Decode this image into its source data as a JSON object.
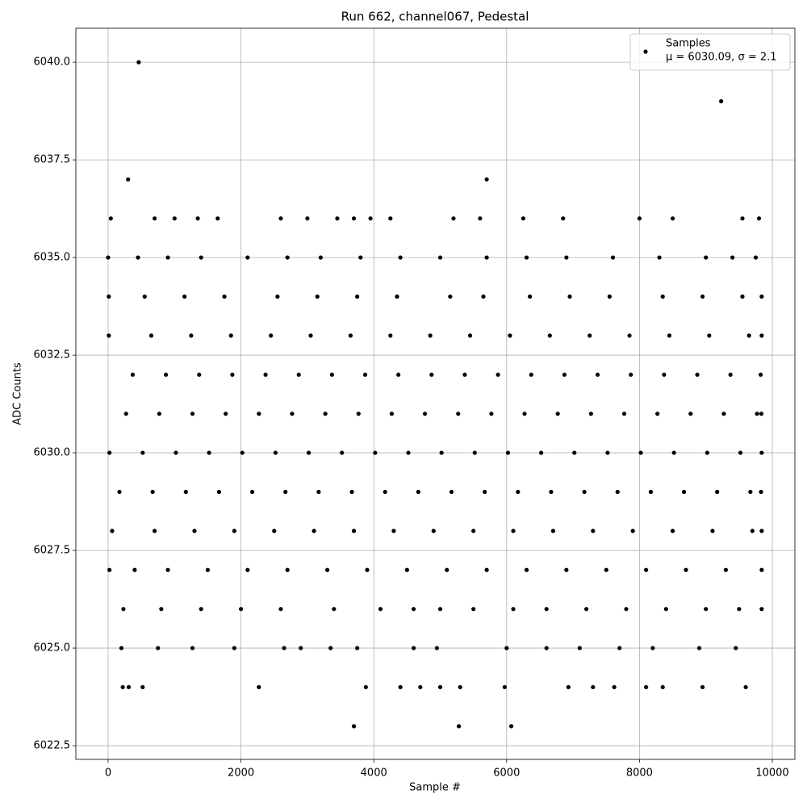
{
  "chart_data": {
    "type": "scatter",
    "title": "Run 662, channel067, Pedestal",
    "x_label": "Sample #",
    "y_label": "ADC Counts",
    "xlim": [
      -486,
      10340
    ],
    "ylim": [
      6022.15,
      6040.87
    ],
    "xticks": [
      0,
      2000,
      4000,
      6000,
      8000,
      10000
    ],
    "yticks": [
      6022.5,
      {
        "value": 6025,
        "label": "6025.0"
      },
      6027.5,
      {
        "value": 6030,
        "label": "6030.0"
      },
      6032.5,
      {
        "value": 6035,
        "label": "6035.0"
      },
      6037.5,
      {
        "value": 6040,
        "label": "6040.0"
      }
    ],
    "grid": true,
    "legend_position": "upper right",
    "series": [
      {
        "name": "Samples",
        "label": "μ = 6030.09, σ = 2.1",
        "color": "#000000",
        "points": [
          [
            20,
            6030
          ],
          [
            520,
            6030
          ],
          [
            1020,
            6030
          ],
          [
            1520,
            6030
          ],
          [
            2020,
            6030
          ],
          [
            2520,
            6030
          ],
          [
            3020,
            6030
          ],
          [
            3520,
            6030
          ],
          [
            4020,
            6030
          ],
          [
            4520,
            6030
          ],
          [
            5020,
            6030
          ],
          [
            5520,
            6030
          ],
          [
            6020,
            6030
          ],
          [
            6520,
            6030
          ],
          [
            7020,
            6030
          ],
          [
            7520,
            6030
          ],
          [
            8020,
            6030
          ],
          [
            8520,
            6030
          ],
          [
            9020,
            6030
          ],
          [
            9520,
            6030
          ],
          [
            9840,
            6030
          ],
          [
            170,
            6029
          ],
          [
            670,
            6029
          ],
          [
            1170,
            6029
          ],
          [
            1670,
            6029
          ],
          [
            2170,
            6029
          ],
          [
            2670,
            6029
          ],
          [
            3170,
            6029
          ],
          [
            3670,
            6029
          ],
          [
            4170,
            6029
          ],
          [
            4670,
            6029
          ],
          [
            5170,
            6029
          ],
          [
            5670,
            6029
          ],
          [
            6170,
            6029
          ],
          [
            6670,
            6029
          ],
          [
            7170,
            6029
          ],
          [
            7670,
            6029
          ],
          [
            8170,
            6029
          ],
          [
            8670,
            6029
          ],
          [
            9170,
            6029
          ],
          [
            9670,
            6029
          ],
          [
            9830,
            6029
          ],
          [
            270,
            6031
          ],
          [
            770,
            6031
          ],
          [
            1270,
            6031
          ],
          [
            1770,
            6031
          ],
          [
            2270,
            6031
          ],
          [
            2770,
            6031
          ],
          [
            3270,
            6031
          ],
          [
            3770,
            6031
          ],
          [
            4270,
            6031
          ],
          [
            4770,
            6031
          ],
          [
            5270,
            6031
          ],
          [
            5770,
            6031
          ],
          [
            6270,
            6031
          ],
          [
            6770,
            6031
          ],
          [
            7270,
            6031
          ],
          [
            7770,
            6031
          ],
          [
            8270,
            6031
          ],
          [
            8770,
            6031
          ],
          [
            9270,
            6031
          ],
          [
            9770,
            6031
          ],
          [
            9835,
            6031
          ],
          [
            370,
            6032
          ],
          [
            870,
            6032
          ],
          [
            1370,
            6032
          ],
          [
            1870,
            6032
          ],
          [
            2370,
            6032
          ],
          [
            2870,
            6032
          ],
          [
            3370,
            6032
          ],
          [
            3870,
            6032
          ],
          [
            4370,
            6032
          ],
          [
            4870,
            6032
          ],
          [
            5370,
            6032
          ],
          [
            5870,
            6032
          ],
          [
            6370,
            6032
          ],
          [
            6870,
            6032
          ],
          [
            7370,
            6032
          ],
          [
            7870,
            6032
          ],
          [
            8370,
            6032
          ],
          [
            8870,
            6032
          ],
          [
            9370,
            6032
          ],
          [
            9825,
            6032
          ],
          [
            60,
            6028
          ],
          [
            700,
            6028
          ],
          [
            1300,
            6028
          ],
          [
            1900,
            6028
          ],
          [
            2500,
            6028
          ],
          [
            3100,
            6028
          ],
          [
            3700,
            6028
          ],
          [
            4300,
            6028
          ],
          [
            4900,
            6028
          ],
          [
            5500,
            6028
          ],
          [
            6100,
            6028
          ],
          [
            6700,
            6028
          ],
          [
            7300,
            6028
          ],
          [
            7900,
            6028
          ],
          [
            8500,
            6028
          ],
          [
            9100,
            6028
          ],
          [
            9700,
            6028
          ],
          [
            9840,
            6028
          ],
          [
            10,
            6033
          ],
          [
            650,
            6033
          ],
          [
            1250,
            6033
          ],
          [
            1850,
            6033
          ],
          [
            2450,
            6033
          ],
          [
            3050,
            6033
          ],
          [
            3650,
            6033
          ],
          [
            4250,
            6033
          ],
          [
            4850,
            6033
          ],
          [
            5450,
            6033
          ],
          [
            6050,
            6033
          ],
          [
            6650,
            6033
          ],
          [
            7250,
            6033
          ],
          [
            7850,
            6033
          ],
          [
            8450,
            6033
          ],
          [
            9050,
            6033
          ],
          [
            9650,
            6033
          ],
          [
            9840,
            6033
          ],
          [
            20,
            6027
          ],
          [
            400,
            6027
          ],
          [
            900,
            6027
          ],
          [
            1500,
            6027
          ],
          [
            2100,
            6027
          ],
          [
            2700,
            6027
          ],
          [
            3300,
            6027
          ],
          [
            3900,
            6027
          ],
          [
            4500,
            6027
          ],
          [
            5100,
            6027
          ],
          [
            5700,
            6027
          ],
          [
            6300,
            6027
          ],
          [
            6900,
            6027
          ],
          [
            7500,
            6027
          ],
          [
            8100,
            6027
          ],
          [
            8700,
            6027
          ],
          [
            9300,
            6027
          ],
          [
            9840,
            6027
          ],
          [
            10,
            6034
          ],
          [
            550,
            6034
          ],
          [
            1150,
            6034
          ],
          [
            1750,
            6034
          ],
          [
            2550,
            6034
          ],
          [
            3150,
            6034
          ],
          [
            3750,
            6034
          ],
          [
            4350,
            6034
          ],
          [
            5150,
            6034
          ],
          [
            5650,
            6034
          ],
          [
            6350,
            6034
          ],
          [
            6950,
            6034
          ],
          [
            7550,
            6034
          ],
          [
            8350,
            6034
          ],
          [
            8950,
            6034
          ],
          [
            9550,
            6034
          ],
          [
            9840,
            6034
          ],
          [
            230,
            6026
          ],
          [
            800,
            6026
          ],
          [
            1400,
            6026
          ],
          [
            2000,
            6026
          ],
          [
            2600,
            6026
          ],
          [
            3400,
            6026
          ],
          [
            4100,
            6026
          ],
          [
            4600,
            6026
          ],
          [
            5000,
            6026
          ],
          [
            5500,
            6026
          ],
          [
            6100,
            6026
          ],
          [
            6600,
            6026
          ],
          [
            7200,
            6026
          ],
          [
            7800,
            6026
          ],
          [
            8400,
            6026
          ],
          [
            9000,
            6026
          ],
          [
            9500,
            6026
          ],
          [
            9840,
            6026
          ],
          [
            0,
            6035
          ],
          [
            450,
            6035
          ],
          [
            900,
            6035
          ],
          [
            1400,
            6035
          ],
          [
            2100,
            6035
          ],
          [
            2700,
            6035
          ],
          [
            3200,
            6035
          ],
          [
            3800,
            6035
          ],
          [
            4400,
            6035
          ],
          [
            5000,
            6035
          ],
          [
            5700,
            6035
          ],
          [
            6300,
            6035
          ],
          [
            6900,
            6035
          ],
          [
            7600,
            6035
          ],
          [
            8300,
            6035
          ],
          [
            9000,
            6035
          ],
          [
            9400,
            6035
          ],
          [
            9750,
            6035
          ],
          [
            200,
            6025
          ],
          [
            750,
            6025
          ],
          [
            1270,
            6025
          ],
          [
            1900,
            6025
          ],
          [
            2650,
            6025
          ],
          [
            2900,
            6025
          ],
          [
            3350,
            6025
          ],
          [
            3750,
            6025
          ],
          [
            4600,
            6025
          ],
          [
            4950,
            6025
          ],
          [
            6000,
            6025
          ],
          [
            6600,
            6025
          ],
          [
            7100,
            6025
          ],
          [
            7700,
            6025
          ],
          [
            8200,
            6025
          ],
          [
            8900,
            6025
          ],
          [
            9450,
            6025
          ],
          [
            220,
            6024
          ],
          [
            310,
            6024
          ],
          [
            520,
            6024
          ],
          [
            2270,
            6024
          ],
          [
            3880,
            6024
          ],
          [
            4400,
            6024
          ],
          [
            4700,
            6024
          ],
          [
            5000,
            6024
          ],
          [
            5300,
            6024
          ],
          [
            5970,
            6024
          ],
          [
            6930,
            6024
          ],
          [
            7300,
            6024
          ],
          [
            7620,
            6024
          ],
          [
            8100,
            6024
          ],
          [
            8350,
            6024
          ],
          [
            8950,
            6024
          ],
          [
            9600,
            6024
          ],
          [
            40,
            6036
          ],
          [
            700,
            6036
          ],
          [
            1000,
            6036
          ],
          [
            1350,
            6036
          ],
          [
            1650,
            6036
          ],
          [
            2600,
            6036
          ],
          [
            3000,
            6036
          ],
          [
            3450,
            6036
          ],
          [
            3700,
            6036
          ],
          [
            3950,
            6036
          ],
          [
            4250,
            6036
          ],
          [
            5200,
            6036
          ],
          [
            5600,
            6036
          ],
          [
            6250,
            6036
          ],
          [
            6850,
            6036
          ],
          [
            8000,
            6036
          ],
          [
            8500,
            6036
          ],
          [
            9550,
            6036
          ],
          [
            9800,
            6036
          ],
          [
            460,
            6040
          ],
          [
            9230,
            6039
          ],
          [
            300,
            6037
          ],
          [
            5700,
            6037
          ],
          [
            3700,
            6023
          ],
          [
            5280,
            6023
          ],
          [
            6070,
            6023
          ]
        ]
      }
    ]
  }
}
